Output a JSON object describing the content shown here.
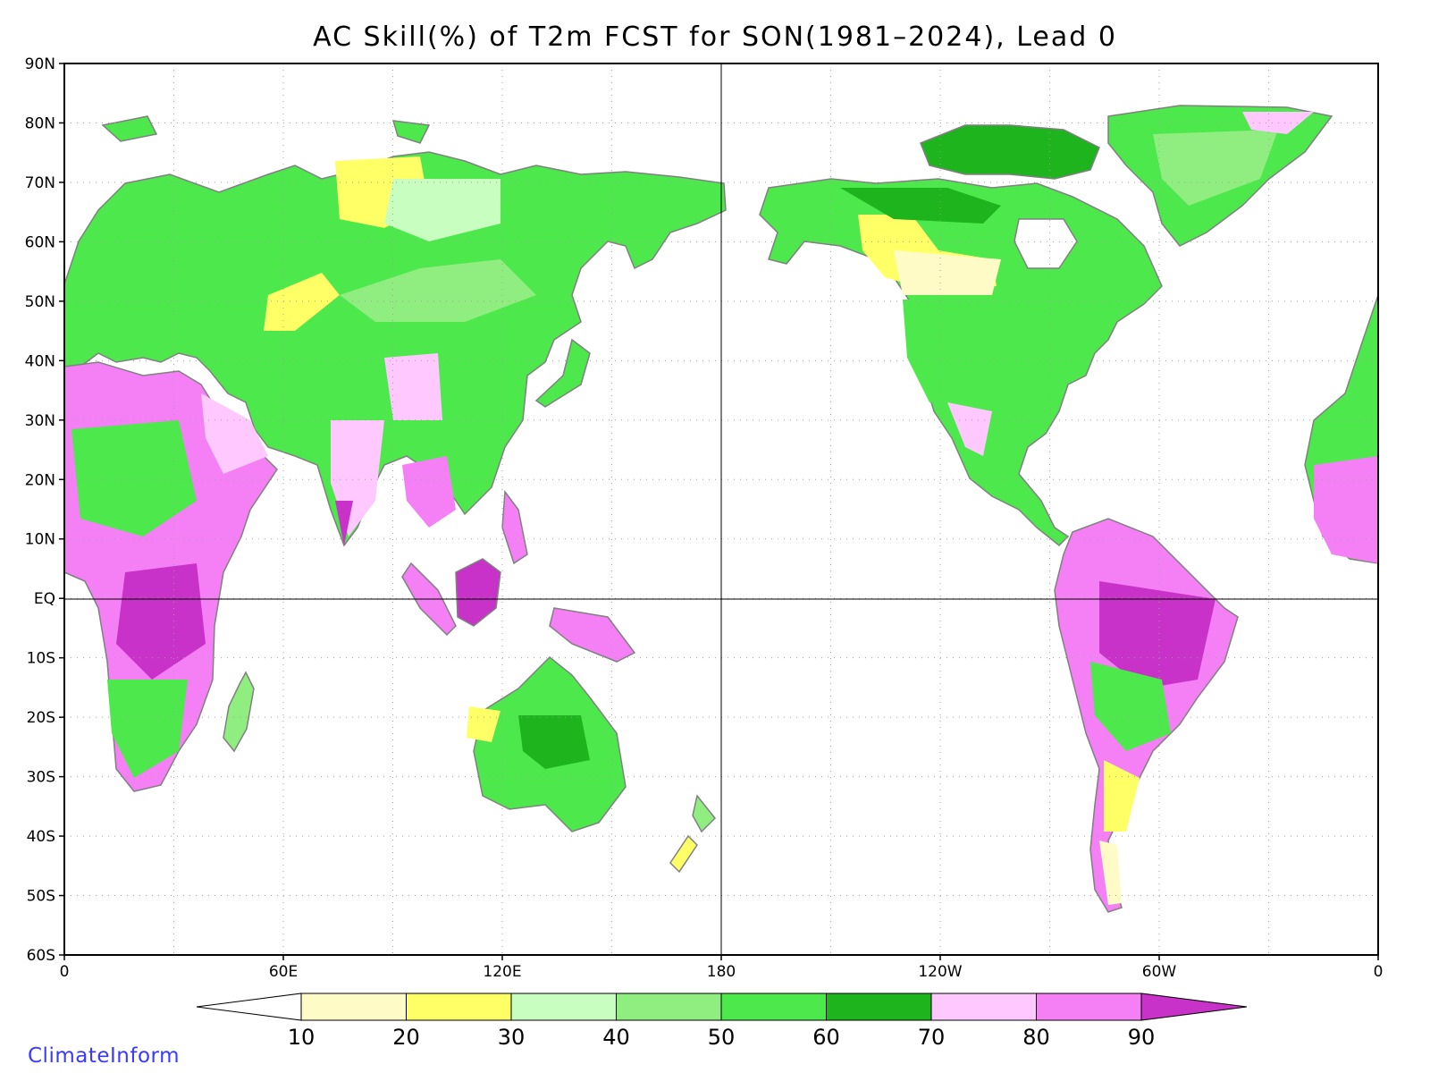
{
  "title": "AC Skill(%) of T2m FCST for SON(1981–2024), Lead 0",
  "credit": "ClimateInform",
  "map": {
    "projection": "cylindrical-equidistant",
    "lon_range": [
      0,
      360
    ],
    "lat_range": [
      -60,
      90
    ],
    "grid": "dotted",
    "y_ticks": [
      "90N",
      "80N",
      "70N",
      "60N",
      "50N",
      "40N",
      "30N",
      "20N",
      "10N",
      "EQ",
      "10S",
      "20S",
      "30S",
      "40S",
      "50S",
      "60S"
    ],
    "x_ticks": [
      "0",
      "60E",
      "120E",
      "180",
      "120W",
      "60W",
      "0"
    ]
  },
  "colorbar": {
    "levels": [
      "10",
      "20",
      "30",
      "40",
      "50",
      "60",
      "70",
      "80",
      "90"
    ],
    "colors": [
      "#ffffff",
      "#fffbc6",
      "#ffff66",
      "#c8ffc0",
      "#90ee80",
      "#4ce84c",
      "#1eb41e",
      "#ffc8ff",
      "#f57ff5",
      "#c832c8"
    ]
  },
  "colors": {
    "coastline": "#808080",
    "frame": "#000000",
    "grid": "#a0a0a0"
  }
}
